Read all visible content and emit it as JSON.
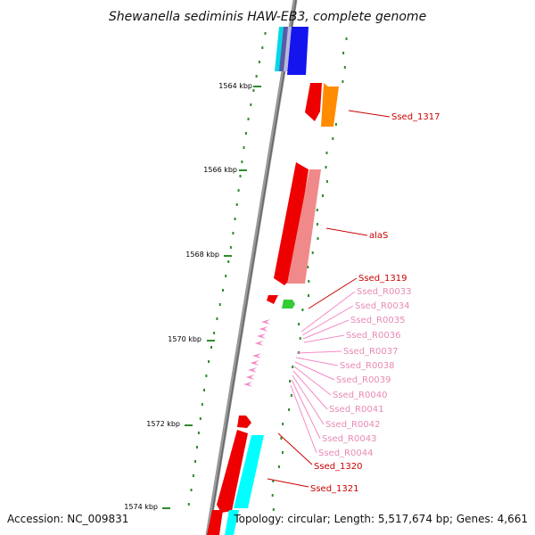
{
  "header": {
    "title": "Shewanella sediminis HAW-EB3, complete genome"
  },
  "footer": {
    "accession": "Accession: NC_009831",
    "topology": "Topology: circular; Length: 5,517,674 bp; Genes: 4,661"
  },
  "scale_labels": [
    "1564 kbp",
    "1566 kbp",
    "1568 kbp",
    "1570 kbp",
    "1572 kbp",
    "1574 kbp"
  ],
  "gene_labels": [
    {
      "text": "Ssed_1317",
      "color": "#cc0000"
    },
    {
      "text": "alaS",
      "color": "#cc0000"
    },
    {
      "text": "Ssed_1319",
      "color": "#cc0000"
    },
    {
      "text": "Ssed_R0033",
      "color": "#e88ab4"
    },
    {
      "text": "Ssed_R0034",
      "color": "#e88ab4"
    },
    {
      "text": "Ssed_R0035",
      "color": "#e88ab4"
    },
    {
      "text": "Ssed_R0036",
      "color": "#e88ab4"
    },
    {
      "text": "Ssed_R0037",
      "color": "#e88ab4"
    },
    {
      "text": "Ssed_R0038",
      "color": "#e88ab4"
    },
    {
      "text": "Ssed_R0039",
      "color": "#e88ab4"
    },
    {
      "text": "Ssed_R0040",
      "color": "#e88ab4"
    },
    {
      "text": "Ssed_R0041",
      "color": "#e88ab4"
    },
    {
      "text": "Ssed_R0042",
      "color": "#e88ab4"
    },
    {
      "text": "Ssed_R0043",
      "color": "#e88ab4"
    },
    {
      "text": "Ssed_R0044",
      "color": "#e88ab4"
    },
    {
      "text": "Ssed_1320",
      "color": "#cc0000"
    },
    {
      "text": "Ssed_1321",
      "color": "#cc0000"
    }
  ],
  "colors": {
    "backbone": "#8c8c8c",
    "gc_dots": "#2e8b2e",
    "cds_red": "#ee0000",
    "cds_pink": "#f08a8a",
    "cds_orange": "#ff8c00",
    "rrna_pink": "#f48ac8",
    "trna_green": "#33cc33",
    "cds_cyan": "#00e0ff",
    "cds_blue": "#1010ee"
  }
}
